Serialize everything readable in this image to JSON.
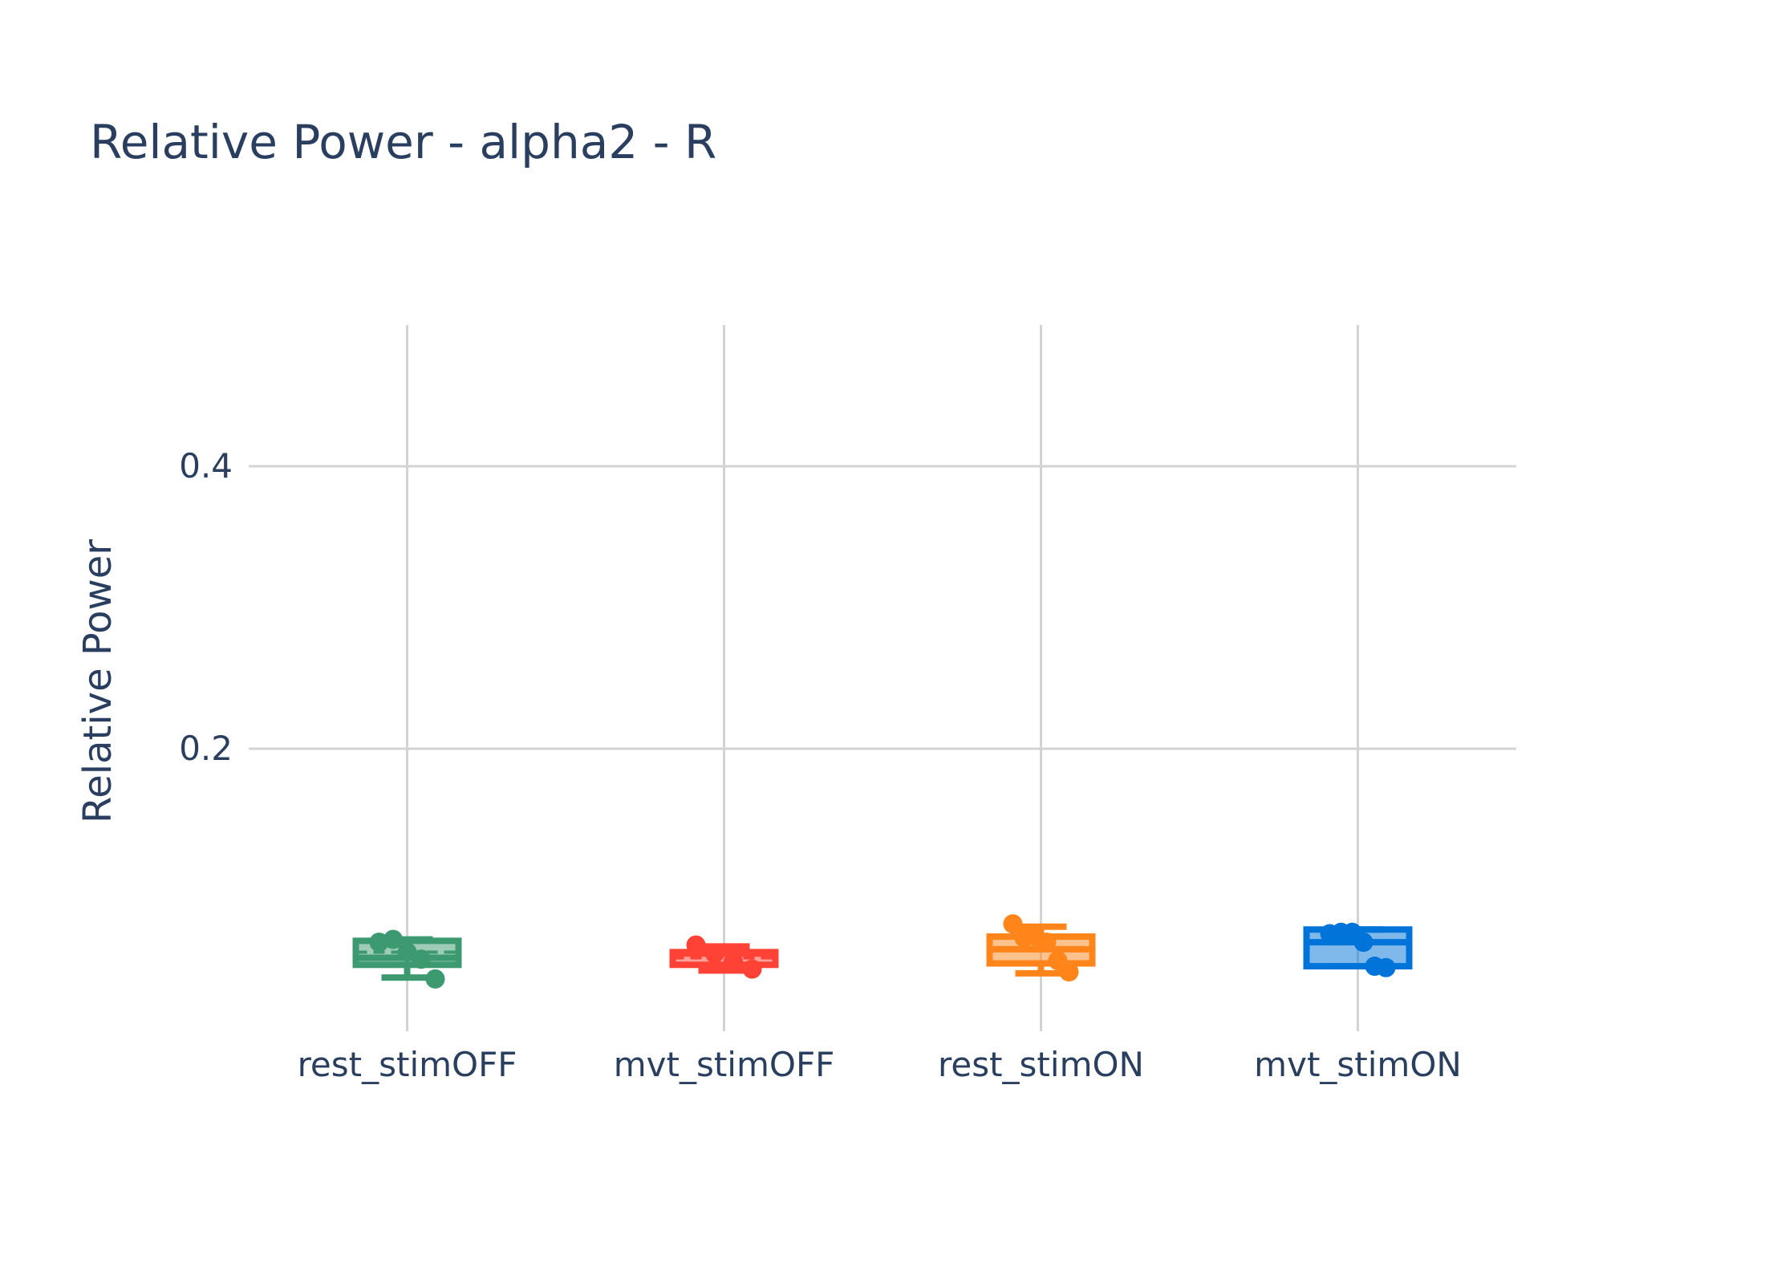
{
  "chart_data": {
    "type": "box",
    "title": "Relative Power - alpha2 - R",
    "xlabel": "",
    "ylabel": "Relative Power",
    "ylim": [
      0.0,
      0.5
    ],
    "yticks": [
      0.2,
      0.4
    ],
    "ytick_labels": [
      "0.2",
      "0.4"
    ],
    "categories": [
      "rest_stimOFF",
      "mvt_stimOFF",
      "rest_stimON",
      "mvt_stimON"
    ],
    "grid": true,
    "legend": "none",
    "series": [
      {
        "category": "rest_stimOFF",
        "color": "#3d9970",
        "q1": 0.047,
        "median": 0.052,
        "q3": 0.064,
        "lower_fence": 0.038,
        "upper_fence": 0.065,
        "mean": 0.056,
        "points": [
          0.063,
          0.065,
          0.056,
          0.051,
          0.037
        ]
      },
      {
        "category": "mvt_stimOFF",
        "color": "#ff4136",
        "q1": 0.047,
        "median": 0.055,
        "q3": 0.056,
        "lower_fence": 0.043,
        "upper_fence": 0.06,
        "mean": 0.052,
        "points": [
          0.061,
          0.055,
          0.049,
          0.044
        ]
      },
      {
        "category": "rest_stimON",
        "color": "#ff851b",
        "q1": 0.048,
        "median": 0.058,
        "q3": 0.067,
        "lower_fence": 0.041,
        "upper_fence": 0.074,
        "mean": 0.058,
        "points": [
          0.076,
          0.066,
          0.067,
          0.063,
          0.05,
          0.042
        ]
      },
      {
        "category": "mvt_stimON",
        "color": "#0074d9",
        "q1": 0.046,
        "median": 0.063,
        "q3": 0.072,
        "lower_fence": 0.046,
        "upper_fence": 0.072,
        "mean": 0.063,
        "points": [
          0.069,
          0.07,
          0.07,
          0.063,
          0.046,
          0.045
        ]
      }
    ]
  }
}
